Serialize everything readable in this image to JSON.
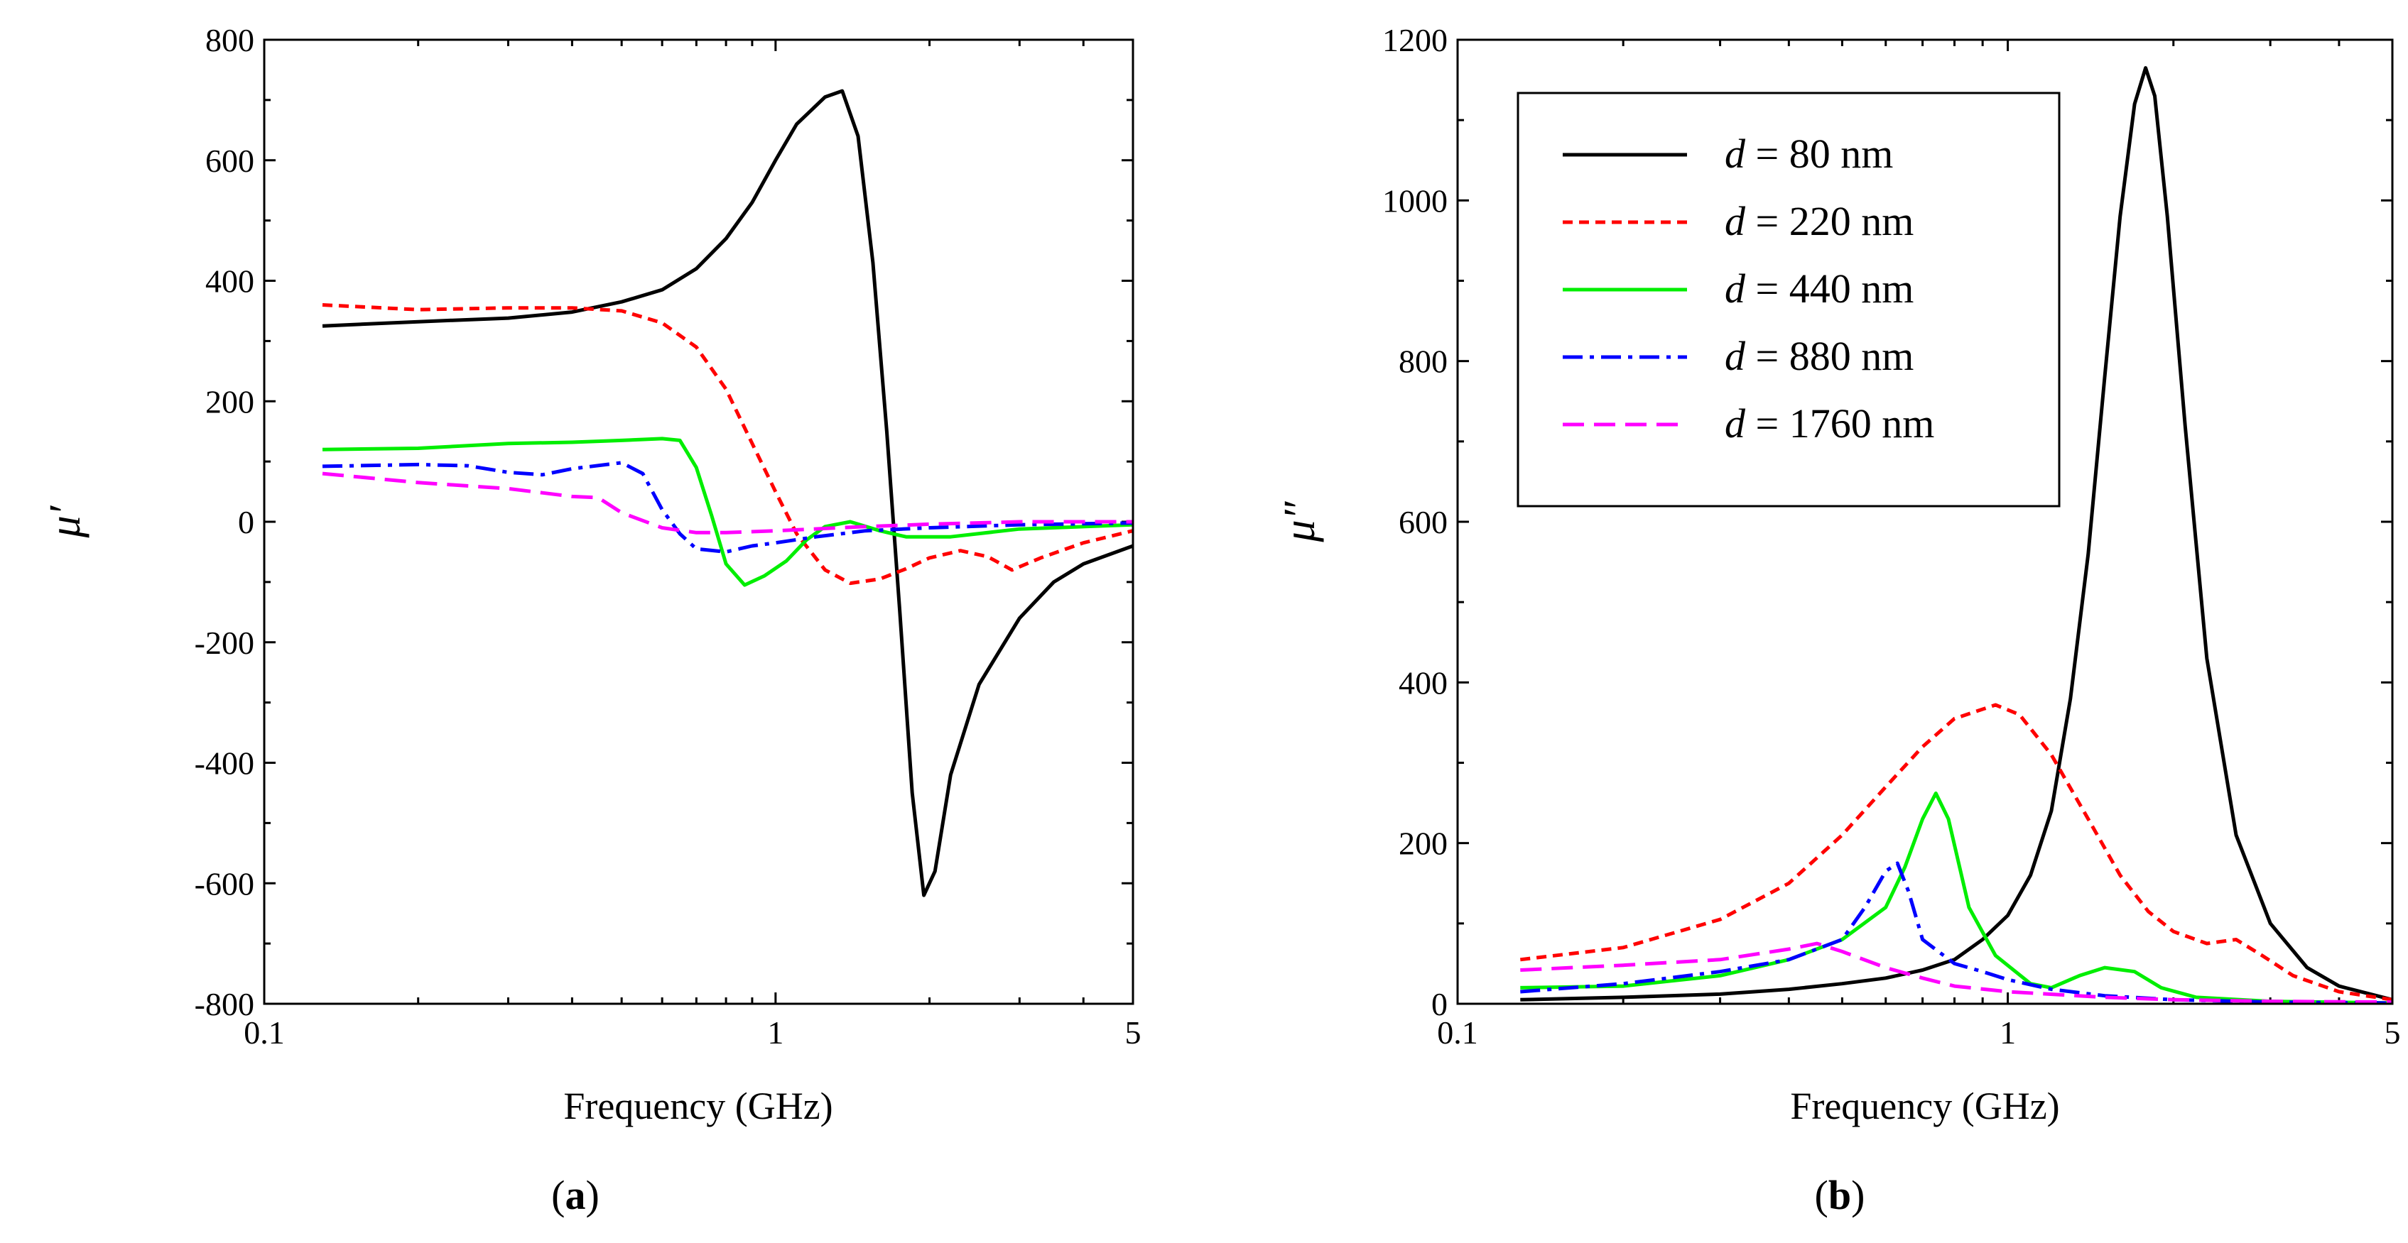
{
  "captions": {
    "a": "a",
    "b": "b"
  },
  "chart_data": [
    {
      "panel": "a",
      "type": "line",
      "xscale": "log",
      "xlabel": "Frequency  (GHz)",
      "ylabel": "μ′",
      "xlim": [
        0.1,
        5
      ],
      "ylim": [
        -800,
        800
      ],
      "xticks": [
        {
          "v": 0.1,
          "label": "0.1"
        },
        {
          "v": 1,
          "label": "1"
        },
        {
          "v": 5,
          "label": "5"
        }
      ],
      "yticks": [
        {
          "v": 800,
          "label": "800"
        },
        {
          "v": 600,
          "label": "600"
        },
        {
          "v": 400,
          "label": "400"
        },
        {
          "v": 200,
          "label": "200"
        },
        {
          "v": 0,
          "label": "0"
        },
        {
          "v": -200,
          "label": "-200"
        },
        {
          "v": -400,
          "label": "-400"
        },
        {
          "v": -600,
          "label": "-600"
        },
        {
          "v": -800,
          "label": "-800"
        }
      ],
      "series": [
        {
          "name": "d = 80 nm",
          "color": "#000000",
          "dash": "",
          "points": [
            [
              0.13,
              325
            ],
            [
              0.2,
              332
            ],
            [
              0.3,
              338
            ],
            [
              0.4,
              348
            ],
            [
              0.5,
              365
            ],
            [
              0.6,
              385
            ],
            [
              0.7,
              420
            ],
            [
              0.8,
              470
            ],
            [
              0.9,
              530
            ],
            [
              1.0,
              600
            ],
            [
              1.1,
              660
            ],
            [
              1.25,
              705
            ],
            [
              1.35,
              715
            ],
            [
              1.45,
              640
            ],
            [
              1.55,
              430
            ],
            [
              1.65,
              150
            ],
            [
              1.75,
              -150
            ],
            [
              1.85,
              -450
            ],
            [
              1.95,
              -620
            ],
            [
              2.05,
              -580
            ],
            [
              2.2,
              -420
            ],
            [
              2.5,
              -270
            ],
            [
              3.0,
              -160
            ],
            [
              3.5,
              -100
            ],
            [
              4.0,
              -70
            ],
            [
              5.0,
              -40
            ]
          ]
        },
        {
          "name": "d = 220 nm",
          "color": "#ff0000",
          "dash": "14,9",
          "points": [
            [
              0.13,
              360
            ],
            [
              0.2,
              352
            ],
            [
              0.3,
              355
            ],
            [
              0.4,
              355
            ],
            [
              0.5,
              350
            ],
            [
              0.6,
              330
            ],
            [
              0.7,
              290
            ],
            [
              0.8,
              220
            ],
            [
              0.9,
              130
            ],
            [
              1.0,
              50
            ],
            [
              1.1,
              -20
            ],
            [
              1.25,
              -80
            ],
            [
              1.4,
              -102
            ],
            [
              1.6,
              -95
            ],
            [
              1.8,
              -78
            ],
            [
              2.0,
              -60
            ],
            [
              2.3,
              -48
            ],
            [
              2.6,
              -58
            ],
            [
              2.9,
              -80
            ],
            [
              3.3,
              -60
            ],
            [
              4.0,
              -35
            ],
            [
              5.0,
              -15
            ]
          ]
        },
        {
          "name": "d = 440 nm",
          "color": "#00ee00",
          "dash": "",
          "points": [
            [
              0.13,
              120
            ],
            [
              0.2,
              122
            ],
            [
              0.3,
              130
            ],
            [
              0.4,
              132
            ],
            [
              0.5,
              135
            ],
            [
              0.6,
              138
            ],
            [
              0.65,
              135
            ],
            [
              0.7,
              90
            ],
            [
              0.75,
              10
            ],
            [
              0.8,
              -70
            ],
            [
              0.87,
              -105
            ],
            [
              0.95,
              -90
            ],
            [
              1.05,
              -65
            ],
            [
              1.15,
              -30
            ],
            [
              1.25,
              -8
            ],
            [
              1.4,
              0
            ],
            [
              1.6,
              -15
            ],
            [
              1.8,
              -25
            ],
            [
              2.2,
              -25
            ],
            [
              3.0,
              -12
            ],
            [
              5.0,
              -5
            ]
          ]
        },
        {
          "name": "d = 880 nm",
          "color": "#0000ff",
          "dash": "28,10,6,10",
          "points": [
            [
              0.13,
              92
            ],
            [
              0.2,
              95
            ],
            [
              0.25,
              93
            ],
            [
              0.3,
              82
            ],
            [
              0.35,
              78
            ],
            [
              0.4,
              88
            ],
            [
              0.5,
              98
            ],
            [
              0.55,
              80
            ],
            [
              0.6,
              20
            ],
            [
              0.65,
              -20
            ],
            [
              0.7,
              -45
            ],
            [
              0.8,
              -50
            ],
            [
              0.9,
              -40
            ],
            [
              1.0,
              -35
            ],
            [
              1.2,
              -25
            ],
            [
              1.5,
              -15
            ],
            [
              2.0,
              -10
            ],
            [
              3.0,
              -5
            ],
            [
              5.0,
              -2
            ]
          ]
        },
        {
          "name": "d = 1760 nm",
          "color": "#ff00ff",
          "dash": "30,14",
          "points": [
            [
              0.13,
              80
            ],
            [
              0.2,
              65
            ],
            [
              0.3,
              55
            ],
            [
              0.4,
              42
            ],
            [
              0.45,
              40
            ],
            [
              0.5,
              15
            ],
            [
              0.6,
              -10
            ],
            [
              0.7,
              -18
            ],
            [
              0.8,
              -18
            ],
            [
              1.0,
              -15
            ],
            [
              1.5,
              -8
            ],
            [
              2.0,
              -4
            ],
            [
              3.0,
              0
            ],
            [
              5.0,
              0
            ]
          ]
        }
      ]
    },
    {
      "panel": "b",
      "type": "line",
      "xscale": "log",
      "xlabel": "Frequency  (GHz)",
      "ylabel": "μ″",
      "xlim": [
        0.1,
        5
      ],
      "ylim": [
        0,
        1200
      ],
      "xticks": [
        {
          "v": 0.1,
          "label": "0.1"
        },
        {
          "v": 1,
          "label": "1"
        },
        {
          "v": 5,
          "label": "5"
        }
      ],
      "yticks": [
        {
          "v": 1200,
          "label": "1200"
        },
        {
          "v": 1000,
          "label": "1000"
        },
        {
          "v": 800,
          "label": "800"
        },
        {
          "v": 600,
          "label": "600"
        },
        {
          "v": 400,
          "label": "400"
        },
        {
          "v": 200,
          "label": "200"
        },
        {
          "v": 0,
          "label": "0"
        }
      ],
      "legend": {
        "location": "top-left",
        "entries": [
          {
            "var": "d",
            "rest": " = 80 nm",
            "color": "#000000",
            "dash": ""
          },
          {
            "var": "d",
            "rest": " = 220 nm",
            "color": "#ff0000",
            "dash": "14,9"
          },
          {
            "var": "d",
            "rest": " = 440 nm",
            "color": "#00ee00",
            "dash": ""
          },
          {
            "var": "d",
            "rest": " = 880 nm",
            "color": "#0000ff",
            "dash": "28,10,6,10"
          },
          {
            "var": "d",
            "rest": " = 1760 nm",
            "color": "#ff00ff",
            "dash": "30,14"
          }
        ]
      },
      "series": [
        {
          "name": "d = 80 nm",
          "color": "#000000",
          "dash": "",
          "points": [
            [
              0.13,
              5
            ],
            [
              0.2,
              8
            ],
            [
              0.3,
              12
            ],
            [
              0.4,
              18
            ],
            [
              0.5,
              25
            ],
            [
              0.6,
              32
            ],
            [
              0.7,
              42
            ],
            [
              0.8,
              55
            ],
            [
              0.9,
              80
            ],
            [
              1.0,
              110
            ],
            [
              1.1,
              160
            ],
            [
              1.2,
              240
            ],
            [
              1.3,
              380
            ],
            [
              1.4,
              560
            ],
            [
              1.5,
              780
            ],
            [
              1.6,
              980
            ],
            [
              1.7,
              1120
            ],
            [
              1.78,
              1165
            ],
            [
              1.85,
              1130
            ],
            [
              1.95,
              980
            ],
            [
              2.1,
              720
            ],
            [
              2.3,
              430
            ],
            [
              2.6,
              210
            ],
            [
              3.0,
              100
            ],
            [
              3.5,
              45
            ],
            [
              4.0,
              22
            ],
            [
              5.0,
              5
            ]
          ]
        },
        {
          "name": "d = 220 nm",
          "color": "#ff0000",
          "dash": "14,9",
          "points": [
            [
              0.13,
              55
            ],
            [
              0.2,
              70
            ],
            [
              0.3,
              105
            ],
            [
              0.4,
              150
            ],
            [
              0.5,
              210
            ],
            [
              0.6,
              270
            ],
            [
              0.7,
              320
            ],
            [
              0.8,
              355
            ],
            [
              0.95,
              372
            ],
            [
              1.05,
              360
            ],
            [
              1.2,
              310
            ],
            [
              1.4,
              230
            ],
            [
              1.6,
              160
            ],
            [
              1.8,
              115
            ],
            [
              2.0,
              90
            ],
            [
              2.3,
              75
            ],
            [
              2.6,
              80
            ],
            [
              2.9,
              60
            ],
            [
              3.3,
              35
            ],
            [
              4.0,
              15
            ],
            [
              5.0,
              5
            ]
          ]
        },
        {
          "name": "d = 440 nm",
          "color": "#00ee00",
          "dash": "",
          "points": [
            [
              0.13,
              20
            ],
            [
              0.2,
              22
            ],
            [
              0.3,
              35
            ],
            [
              0.4,
              55
            ],
            [
              0.5,
              80
            ],
            [
              0.6,
              120
            ],
            [
              0.65,
              170
            ],
            [
              0.7,
              230
            ],
            [
              0.74,
              262
            ],
            [
              0.78,
              230
            ],
            [
              0.85,
              120
            ],
            [
              0.95,
              60
            ],
            [
              1.1,
              25
            ],
            [
              1.2,
              20
            ],
            [
              1.35,
              35
            ],
            [
              1.5,
              45
            ],
            [
              1.7,
              40
            ],
            [
              1.9,
              20
            ],
            [
              2.2,
              8
            ],
            [
              3.0,
              3
            ],
            [
              5.0,
              1
            ]
          ]
        },
        {
          "name": "d = 880 nm",
          "color": "#0000ff",
          "dash": "28,10,6,10",
          "points": [
            [
              0.13,
              15
            ],
            [
              0.2,
              25
            ],
            [
              0.3,
              40
            ],
            [
              0.4,
              55
            ],
            [
              0.5,
              80
            ],
            [
              0.55,
              120
            ],
            [
              0.6,
              165
            ],
            [
              0.63,
              175
            ],
            [
              0.66,
              140
            ],
            [
              0.7,
              80
            ],
            [
              0.8,
              50
            ],
            [
              0.9,
              40
            ],
            [
              1.0,
              30
            ],
            [
              1.2,
              18
            ],
            [
              1.5,
              10
            ],
            [
              2.0,
              5
            ],
            [
              3.0,
              2
            ],
            [
              5.0,
              1
            ]
          ]
        },
        {
          "name": "d = 1760 nm",
          "color": "#ff00ff",
          "dash": "30,14",
          "points": [
            [
              0.13,
              42
            ],
            [
              0.2,
              48
            ],
            [
              0.3,
              55
            ],
            [
              0.4,
              68
            ],
            [
              0.45,
              75
            ],
            [
              0.5,
              65
            ],
            [
              0.6,
              45
            ],
            [
              0.7,
              32
            ],
            [
              0.8,
              22
            ],
            [
              1.0,
              15
            ],
            [
              1.5,
              8
            ],
            [
              2.0,
              5
            ],
            [
              3.0,
              3
            ],
            [
              5.0,
              2
            ]
          ]
        }
      ]
    }
  ]
}
